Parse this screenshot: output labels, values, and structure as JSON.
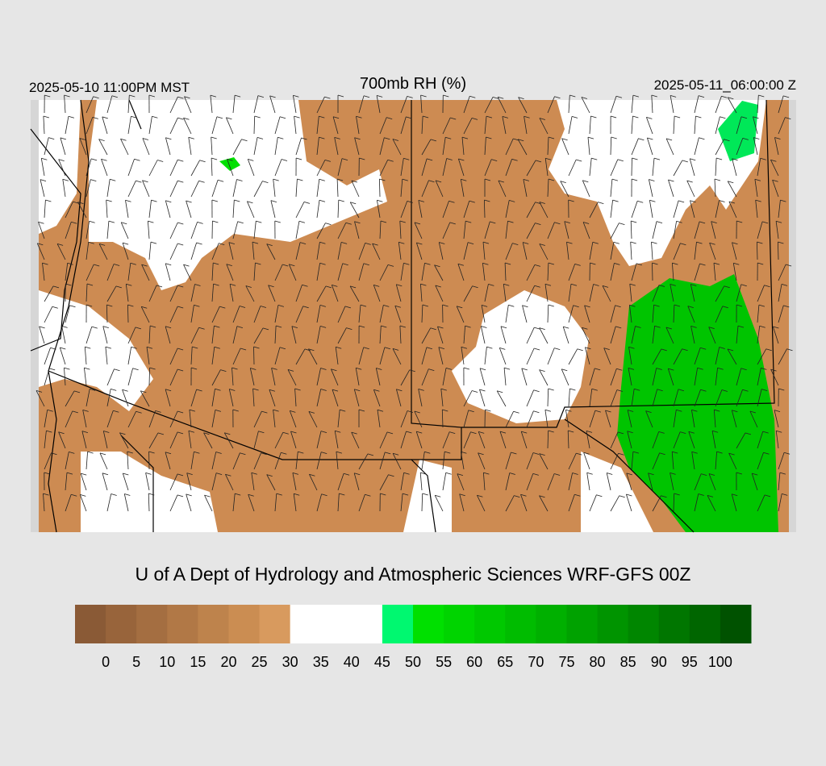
{
  "header": {
    "local_time": "2025-05-10 11:00PM MST",
    "title": "700mb RH (%)",
    "valid_time": "2025-05-11_06:00:00 Z"
  },
  "credit": "U of A Dept of Hydrology and Atmospheric Sciences WRF-GFS 00Z",
  "colorbar": {
    "levels": [
      0,
      5,
      10,
      15,
      20,
      25,
      30,
      35,
      40,
      45,
      50,
      55,
      60,
      65,
      70,
      75,
      80,
      85,
      90,
      95,
      100
    ],
    "colors": [
      "#8a5a36",
      "#98643b",
      "#a46e41",
      "#b17846",
      "#be834c",
      "#cb8d52",
      "#d89a5e",
      "#ffffff",
      "#ffffff",
      "#ffffff",
      "#00f870",
      "#00e000",
      "#00d400",
      "#00c800",
      "#00bc00",
      "#00b000",
      "#00a200",
      "#009400",
      "#008600",
      "#007600",
      "#006600",
      "#005200"
    ]
  }
}
